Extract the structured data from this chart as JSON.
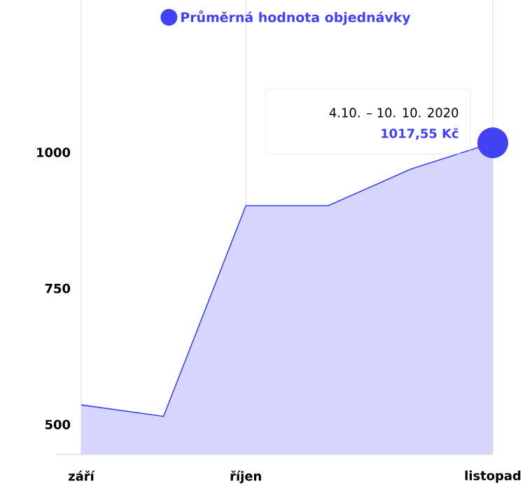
{
  "chart_data": {
    "type": "area",
    "categories": [
      "září",
      null,
      "říjen",
      null,
      null,
      "listopad"
    ],
    "series": [
      {
        "name": "Průměrná hodnota objednávky",
        "color": "#4242f5",
        "values": [
          536,
          515,
          902,
          902,
          969,
          1017.55
        ]
      }
    ],
    "ylim": [
      445,
      1280
    ],
    "yticks": [
      500,
      750,
      1000
    ],
    "grid": "x",
    "legend": "top",
    "annotations": [
      "4.10. – 10. 10. 2020",
      "1017,55 Kč"
    ]
  }
}
